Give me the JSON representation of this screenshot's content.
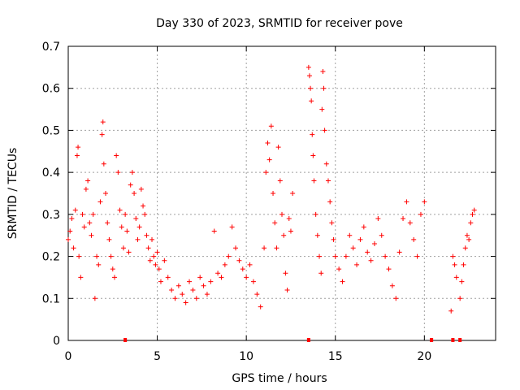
{
  "chart_data": {
    "type": "scatter",
    "title": "Day 330 of 2023, SRMTID for receiver pove",
    "xlabel": "GPS time / hours",
    "ylabel": "SRMTID / TECUs",
    "xlim": [
      0,
      24
    ],
    "ylim": [
      0,
      0.7
    ],
    "xticks": [
      "0",
      "5",
      "10",
      "15",
      "20"
    ],
    "yticks": [
      "0",
      "0.1",
      "0.2",
      "0.3",
      "0.4",
      "0.5",
      "0.6",
      "0.7"
    ],
    "grid": true,
    "marker": "+",
    "color": "#ff0000",
    "series": [
      {
        "name": "SRMTID",
        "points": [
          [
            0.0,
            0.24
          ],
          [
            0.1,
            0.26
          ],
          [
            0.2,
            0.29
          ],
          [
            0.3,
            0.22
          ],
          [
            0.4,
            0.31
          ],
          [
            0.5,
            0.44
          ],
          [
            0.55,
            0.46
          ],
          [
            0.6,
            0.2
          ],
          [
            0.7,
            0.15
          ],
          [
            0.8,
            0.3
          ],
          [
            0.9,
            0.27
          ],
          [
            1.0,
            0.36
          ],
          [
            1.1,
            0.38
          ],
          [
            1.2,
            0.28
          ],
          [
            1.3,
            0.25
          ],
          [
            1.4,
            0.3
          ],
          [
            1.5,
            0.1
          ],
          [
            1.6,
            0.2
          ],
          [
            1.7,
            0.18
          ],
          [
            1.8,
            0.33
          ],
          [
            1.9,
            0.49
          ],
          [
            1.95,
            0.52
          ],
          [
            2.0,
            0.42
          ],
          [
            2.1,
            0.35
          ],
          [
            2.2,
            0.28
          ],
          [
            2.3,
            0.24
          ],
          [
            2.4,
            0.2
          ],
          [
            2.5,
            0.17
          ],
          [
            2.6,
            0.15
          ],
          [
            2.7,
            0.44
          ],
          [
            2.8,
            0.4
          ],
          [
            2.9,
            0.31
          ],
          [
            3.0,
            0.27
          ],
          [
            3.1,
            0.22
          ],
          [
            3.2,
            0.3
          ],
          [
            3.3,
            0.26
          ],
          [
            3.4,
            0.21
          ],
          [
            3.5,
            0.37
          ],
          [
            3.6,
            0.4
          ],
          [
            3.7,
            0.35
          ],
          [
            3.8,
            0.29
          ],
          [
            3.9,
            0.24
          ],
          [
            4.0,
            0.27
          ],
          [
            4.1,
            0.36
          ],
          [
            4.2,
            0.32
          ],
          [
            4.3,
            0.3
          ],
          [
            4.4,
            0.25
          ],
          [
            4.5,
            0.22
          ],
          [
            4.6,
            0.19
          ],
          [
            4.7,
            0.24
          ],
          [
            4.8,
            0.2
          ],
          [
            4.9,
            0.18
          ],
          [
            5.0,
            0.21
          ],
          [
            5.1,
            0.17
          ],
          [
            5.2,
            0.14
          ],
          [
            5.4,
            0.19
          ],
          [
            5.6,
            0.15
          ],
          [
            5.8,
            0.12
          ],
          [
            6.0,
            0.1
          ],
          [
            6.2,
            0.13
          ],
          [
            6.4,
            0.11
          ],
          [
            6.6,
            0.09
          ],
          [
            6.8,
            0.14
          ],
          [
            7.0,
            0.12
          ],
          [
            7.2,
            0.1
          ],
          [
            7.4,
            0.15
          ],
          [
            7.6,
            0.13
          ],
          [
            7.8,
            0.11
          ],
          [
            8.0,
            0.14
          ],
          [
            8.2,
            0.26
          ],
          [
            8.4,
            0.16
          ],
          [
            8.6,
            0.15
          ],
          [
            8.8,
            0.18
          ],
          [
            9.0,
            0.2
          ],
          [
            9.2,
            0.27
          ],
          [
            9.4,
            0.22
          ],
          [
            9.6,
            0.19
          ],
          [
            9.8,
            0.17
          ],
          [
            10.0,
            0.15
          ],
          [
            10.2,
            0.18
          ],
          [
            10.4,
            0.14
          ],
          [
            10.6,
            0.11
          ],
          [
            10.8,
            0.08
          ],
          [
            11.0,
            0.22
          ],
          [
            11.1,
            0.4
          ],
          [
            11.2,
            0.47
          ],
          [
            11.3,
            0.43
          ],
          [
            11.4,
            0.51
          ],
          [
            11.5,
            0.35
          ],
          [
            11.6,
            0.28
          ],
          [
            11.7,
            0.22
          ],
          [
            11.8,
            0.46
          ],
          [
            11.9,
            0.38
          ],
          [
            12.0,
            0.3
          ],
          [
            12.1,
            0.25
          ],
          [
            12.2,
            0.16
          ],
          [
            12.3,
            0.12
          ],
          [
            12.4,
            0.29
          ],
          [
            12.5,
            0.26
          ],
          [
            12.6,
            0.35
          ],
          [
            13.5,
            0.65
          ],
          [
            13.55,
            0.63
          ],
          [
            13.6,
            0.6
          ],
          [
            13.65,
            0.57
          ],
          [
            13.7,
            0.49
          ],
          [
            13.75,
            0.44
          ],
          [
            13.8,
            0.38
          ],
          [
            13.9,
            0.3
          ],
          [
            14.0,
            0.25
          ],
          [
            14.1,
            0.2
          ],
          [
            14.2,
            0.16
          ],
          [
            14.25,
            0.55
          ],
          [
            14.3,
            0.64
          ],
          [
            14.35,
            0.6
          ],
          [
            14.4,
            0.5
          ],
          [
            14.5,
            0.42
          ],
          [
            14.6,
            0.38
          ],
          [
            14.7,
            0.33
          ],
          [
            14.8,
            0.28
          ],
          [
            14.9,
            0.24
          ],
          [
            15.0,
            0.2
          ],
          [
            15.2,
            0.17
          ],
          [
            15.4,
            0.14
          ],
          [
            15.6,
            0.2
          ],
          [
            15.8,
            0.25
          ],
          [
            16.0,
            0.22
          ],
          [
            16.2,
            0.18
          ],
          [
            16.4,
            0.24
          ],
          [
            16.6,
            0.27
          ],
          [
            16.8,
            0.21
          ],
          [
            17.0,
            0.19
          ],
          [
            17.2,
            0.23
          ],
          [
            17.4,
            0.29
          ],
          [
            17.6,
            0.25
          ],
          [
            17.8,
            0.2
          ],
          [
            18.0,
            0.17
          ],
          [
            18.2,
            0.13
          ],
          [
            18.4,
            0.1
          ],
          [
            18.6,
            0.21
          ],
          [
            18.8,
            0.29
          ],
          [
            19.0,
            0.33
          ],
          [
            19.2,
            0.28
          ],
          [
            19.4,
            0.24
          ],
          [
            19.6,
            0.2
          ],
          [
            19.8,
            0.3
          ],
          [
            20.0,
            0.33
          ],
          [
            21.6,
            0.2
          ],
          [
            21.7,
            0.18
          ],
          [
            21.8,
            0.15
          ],
          [
            21.5,
            0.07
          ],
          [
            22.0,
            0.1
          ],
          [
            22.1,
            0.14
          ],
          [
            22.2,
            0.18
          ],
          [
            22.3,
            0.22
          ],
          [
            22.4,
            0.25
          ],
          [
            22.5,
            0.24
          ],
          [
            22.6,
            0.28
          ],
          [
            22.7,
            0.3
          ],
          [
            22.8,
            0.31
          ]
        ]
      }
    ],
    "gap_markers_x": [
      3.2,
      13.5,
      20.4,
      21.6,
      22.0
    ]
  }
}
